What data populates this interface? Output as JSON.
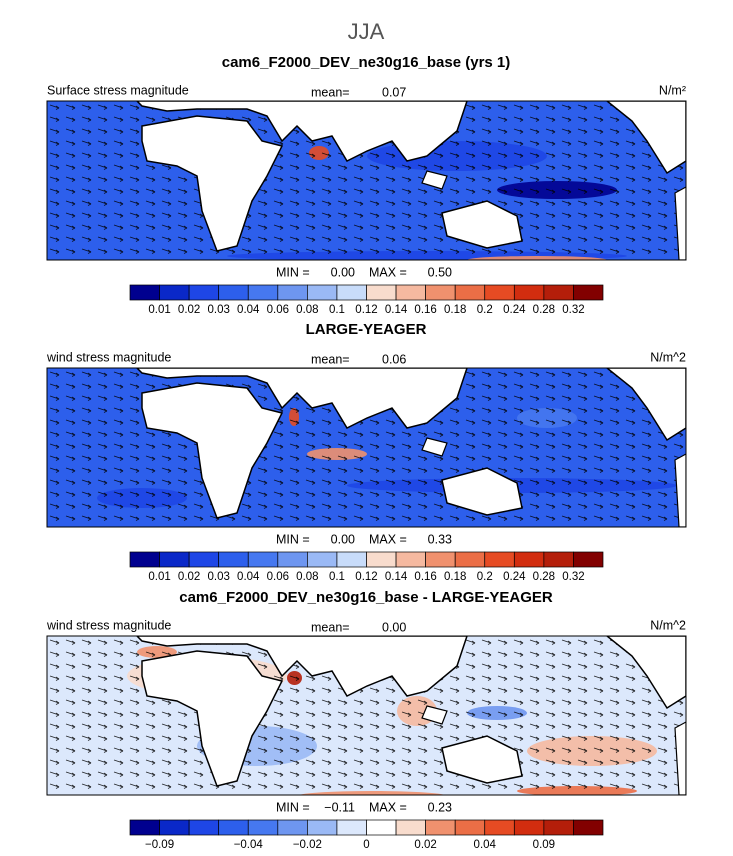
{
  "title": "JJA",
  "panels": [
    {
      "title": "cam6_F2000_DEV_ne30g16_base (yrs 1)",
      "left_label": "Surface stress magnitude",
      "mean_label": "mean=",
      "mean": "0.07",
      "units": "N/m²",
      "min_label": "MIN =",
      "min": "0.00",
      "max_label": "MAX =",
      "max": "0.50",
      "colorbar": {
        "colors": [
          "#00008f",
          "#0a28c8",
          "#1e46e6",
          "#2d5fec",
          "#4678f0",
          "#6e96f0",
          "#9ab9f5",
          "#c8dcfa",
          "#f8dccd",
          "#f5b9a0",
          "#f0916e",
          "#eb6e46",
          "#e64b23",
          "#d22d0f",
          "#b41e0a",
          "#820000"
        ],
        "labels": [
          "0.01",
          "0.02",
          "0.03",
          "0.04",
          "0.06",
          "0.08",
          "0.1",
          "0.12",
          "0.14",
          "0.16",
          "0.18",
          "0.2",
          "0.24",
          "0.28",
          "0.32"
        ]
      }
    },
    {
      "title": "LARGE-YEAGER",
      "left_label": "wind stress magnitude",
      "mean_label": "mean=",
      "mean": "0.06",
      "units": "N/m^2",
      "min_label": "MIN =",
      "min": "0.00",
      "max_label": "MAX =",
      "max": "0.33",
      "colorbar": {
        "colors": [
          "#00008f",
          "#0a28c8",
          "#1e46e6",
          "#2d5fec",
          "#4678f0",
          "#6e96f0",
          "#9ab9f5",
          "#c8dcfa",
          "#f8dccd",
          "#f5b9a0",
          "#f0916e",
          "#eb6e46",
          "#e64b23",
          "#d22d0f",
          "#b41e0a",
          "#820000"
        ],
        "labels": [
          "0.01",
          "0.02",
          "0.03",
          "0.04",
          "0.06",
          "0.08",
          "0.1",
          "0.12",
          "0.14",
          "0.16",
          "0.18",
          "0.2",
          "0.24",
          "0.28",
          "0.32"
        ]
      }
    },
    {
      "title": "cam6_F2000_DEV_ne30g16_base - LARGE-YEAGER",
      "left_label": "wind stress magnitude",
      "mean_label": "mean=",
      "mean": "0.00",
      "units": "N/m^2",
      "min_label": "MIN =",
      "min": "−0.11",
      "max_label": "MAX =",
      "max": "0.23",
      "colorbar": {
        "colors": [
          "#00008f",
          "#0a28c8",
          "#1e46e6",
          "#2d5fec",
          "#4678f0",
          "#6e96f0",
          "#9ab9f5",
          "#dce8fc",
          "#ffffff",
          "#f8dccd",
          "#f0916e",
          "#eb6e46",
          "#e64b23",
          "#d22d0f",
          "#b41e0a",
          "#820000"
        ],
        "labels": [
          "−0.09",
          null,
          null,
          "−0.04",
          null,
          "−0.02",
          null,
          "0",
          null,
          "0.02",
          null,
          "0.04",
          null,
          "0.09",
          null
        ]
      }
    }
  ]
}
